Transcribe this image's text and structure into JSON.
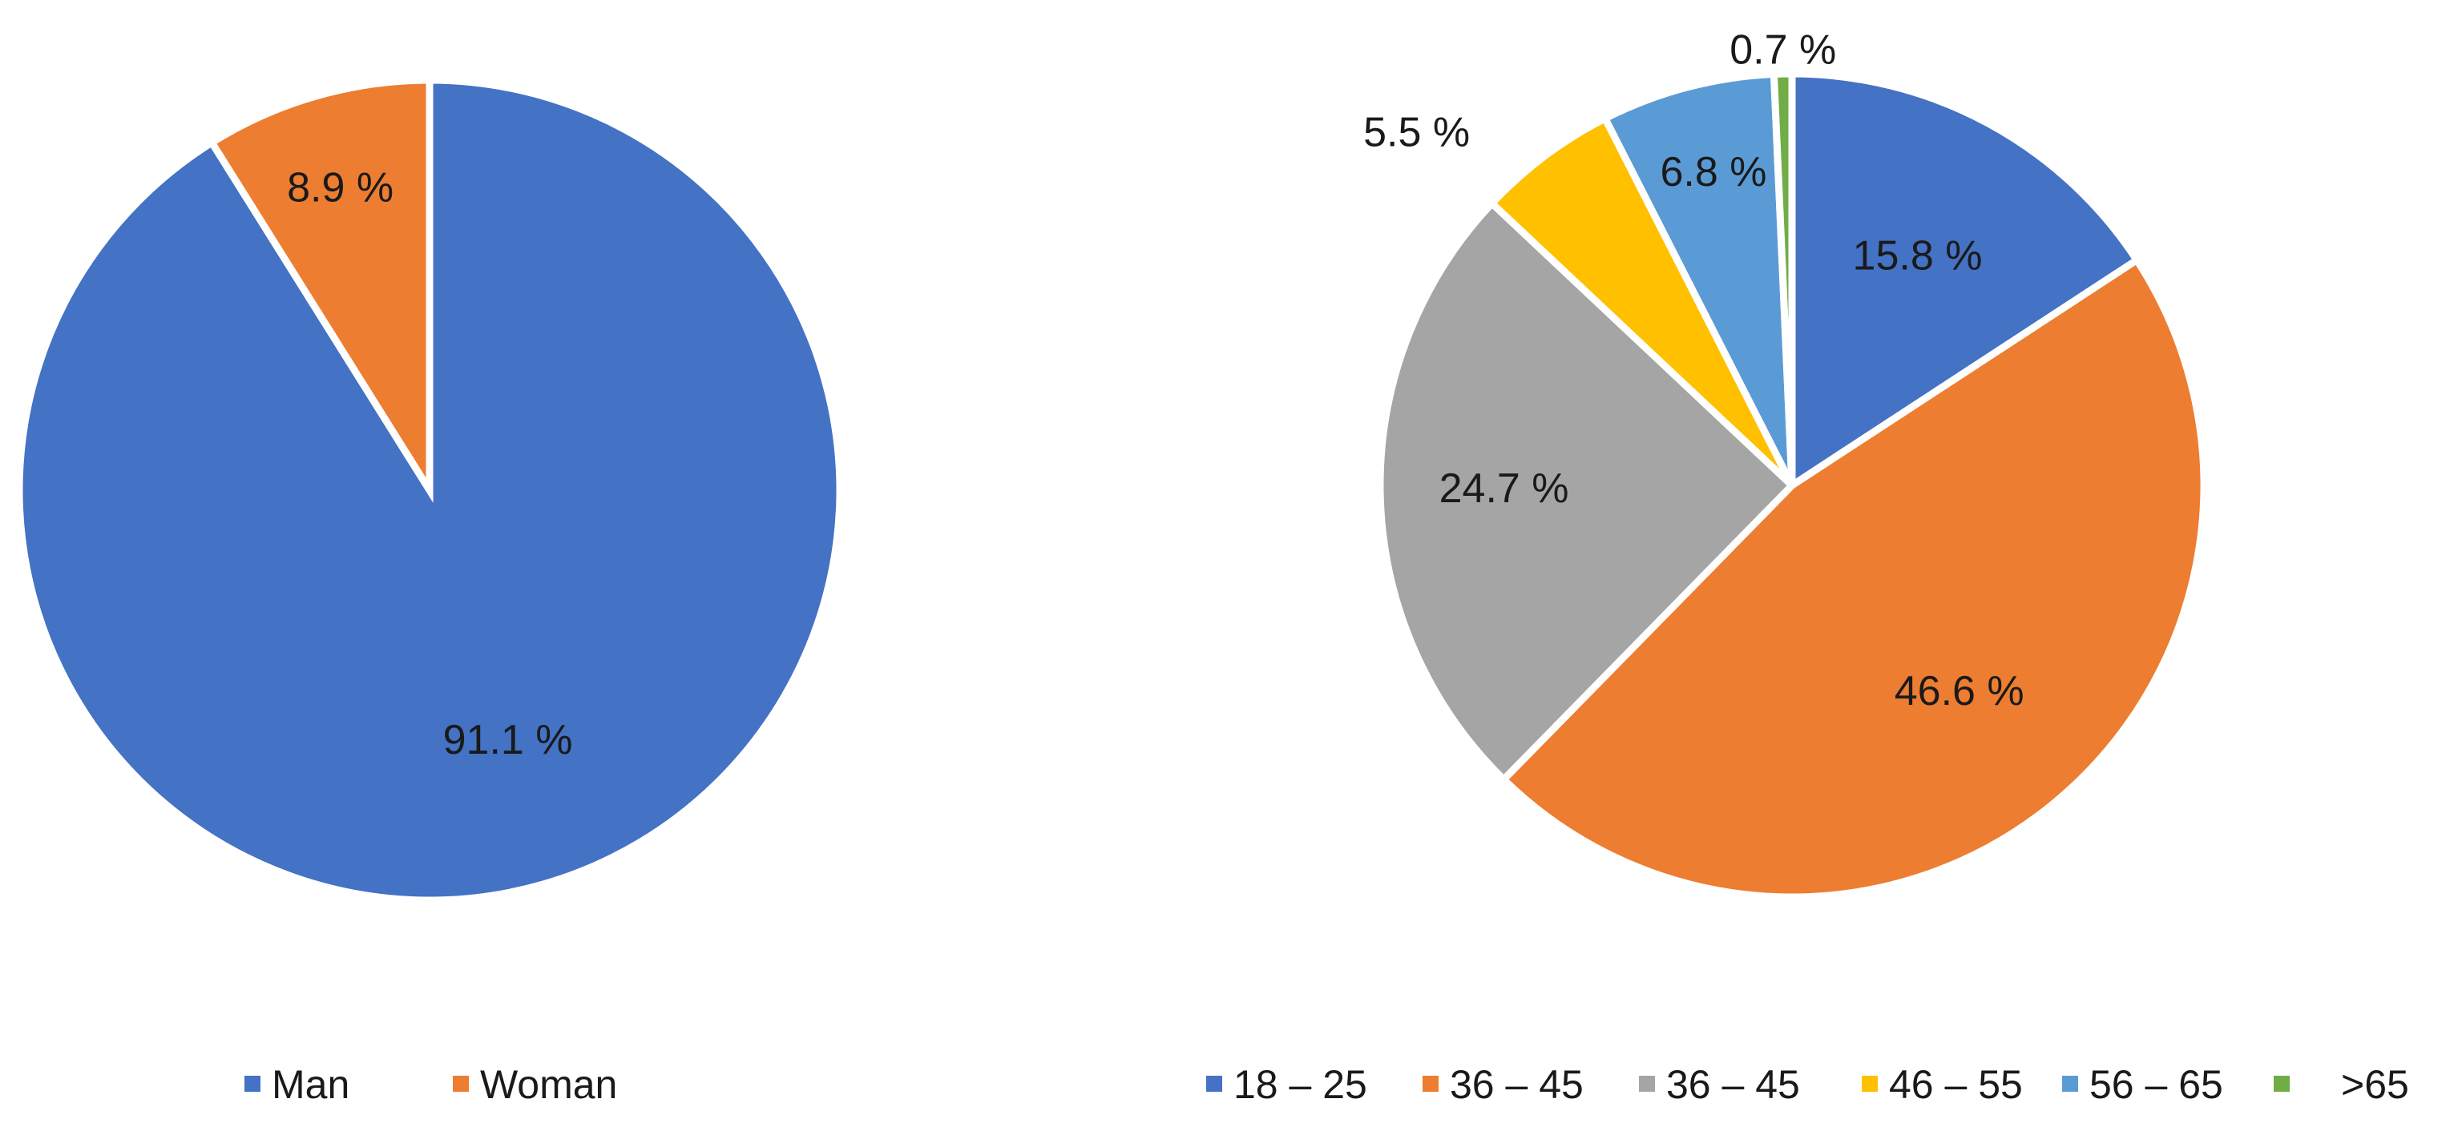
{
  "chart_data": [
    {
      "type": "pie",
      "start": "12 o'clock",
      "direction": "clockwise",
      "slices": [
        {
          "label": "Man",
          "value": 91.1,
          "label_text": "91.1 %",
          "color": "#4472C4"
        },
        {
          "label": "Woman",
          "value": 8.9,
          "label_text": "8.9 %",
          "color": "#ED7D31"
        }
      ],
      "legend": {
        "position": "bottom",
        "items": [
          "Man",
          "Woman"
        ]
      }
    },
    {
      "type": "pie",
      "start": "12 o'clock",
      "direction": "clockwise",
      "slices": [
        {
          "label": "18 – 25",
          "value": 15.8,
          "label_text": "15.8 %",
          "color": "#4472C4"
        },
        {
          "label": "36 – 45",
          "value": 46.6,
          "label_text": "46.6 %",
          "color": "#ED7D31"
        },
        {
          "label": "36 – 45",
          "value": 24.7,
          "label_text": "24.7 %",
          "color": "#A5A5A5"
        },
        {
          "label": "46 – 55",
          "value": 5.5,
          "label_text": "5.5 %",
          "color": "#FFC000"
        },
        {
          "label": "56 – 65",
          "value": 6.8,
          "label_text": "6.8 %",
          "color": "#5B9BD5"
        },
        {
          "label": ">65",
          "value": 0.7,
          "label_text": "0.7 %",
          "color": "#70AD47"
        }
      ],
      "legend": {
        "position": "bottom",
        "items": [
          "18 – 25",
          "36 – 45",
          "36 – 45",
          "46 – 55",
          "56 – 65",
          ">65"
        ]
      }
    }
  ]
}
